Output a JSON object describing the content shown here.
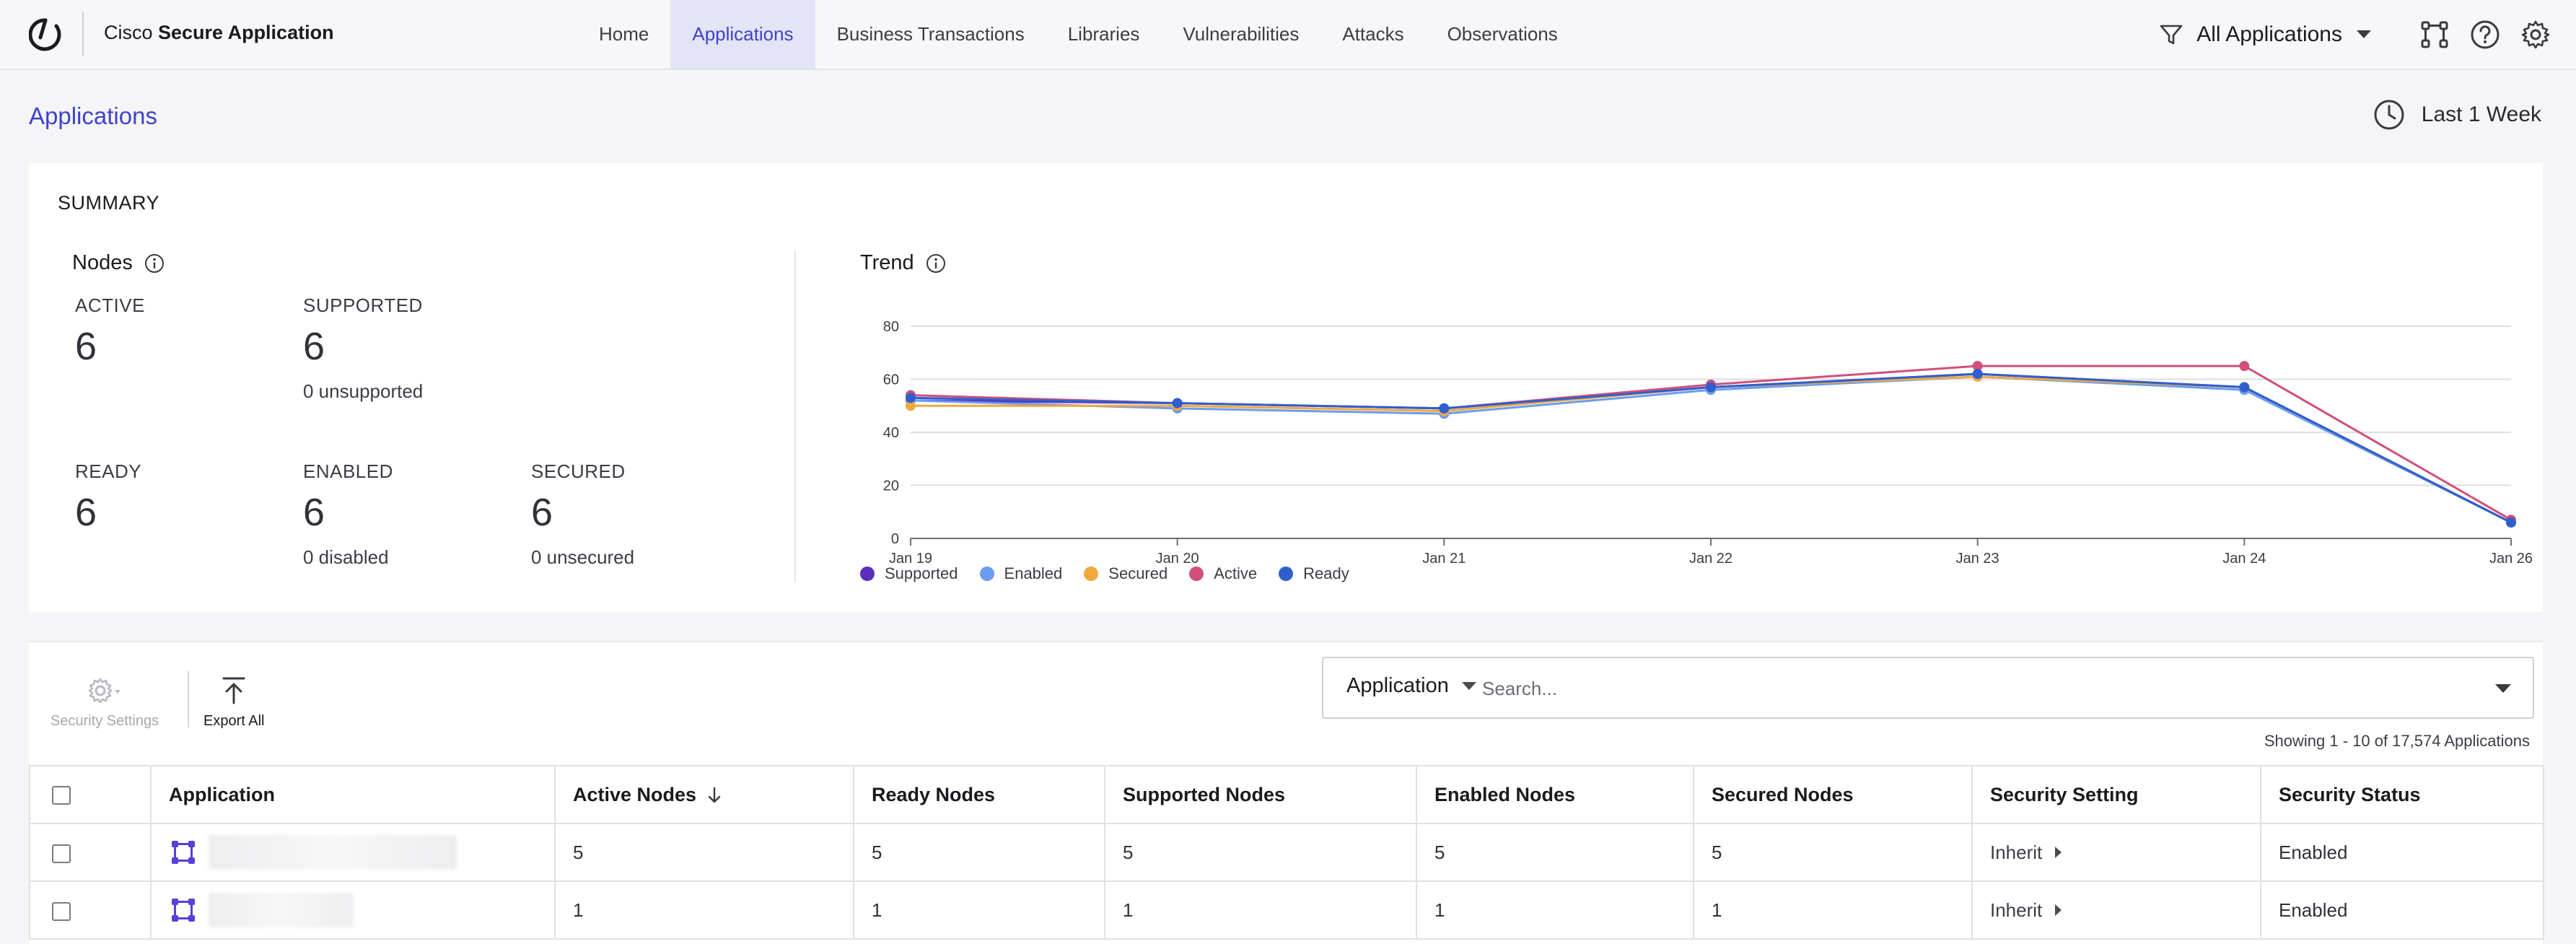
{
  "header": {
    "brand_prefix": "Cisco ",
    "brand_bold": "Secure Application",
    "nav": [
      {
        "label": "Home",
        "active": false
      },
      {
        "label": "Applications",
        "active": true
      },
      {
        "label": "Business Transactions",
        "active": false
      },
      {
        "label": "Libraries",
        "active": false
      },
      {
        "label": "Vulnerabilities",
        "active": false
      },
      {
        "label": "Attacks",
        "active": false
      },
      {
        "label": "Observations",
        "active": false
      }
    ],
    "app_filter": "All Applications",
    "icons": [
      "filter-icon",
      "topology-icon",
      "help-icon",
      "gear-icon"
    ]
  },
  "page": {
    "title": "Applications",
    "time_range": "Last 1 Week"
  },
  "summary": {
    "title": "SUMMARY",
    "nodes_label": "Nodes",
    "trend_label": "Trend",
    "metrics": {
      "active": {
        "label": "ACTIVE",
        "value": "6"
      },
      "supported": {
        "label": "SUPPORTED",
        "value": "6",
        "sub": "0 unsupported"
      },
      "ready": {
        "label": "READY",
        "value": "6"
      },
      "enabled": {
        "label": "ENABLED",
        "value": "6",
        "sub": "0 disabled"
      },
      "secured": {
        "label": "SECURED",
        "value": "6",
        "sub": "0 unsecured"
      }
    }
  },
  "chart_data": {
    "type": "line",
    "title": "Trend",
    "x": [
      "Jan 19",
      "Jan 20",
      "Jan 21",
      "Jan 22",
      "Jan 23",
      "Jan 24",
      "Jan 26"
    ],
    "ylim": [
      0,
      80
    ],
    "yticks": [
      0,
      20,
      40,
      60,
      80
    ],
    "grid": true,
    "legend_position": "bottom-left",
    "series": [
      {
        "name": "Supported",
        "color": "#5b2fb8",
        "values": [
          52,
          51,
          49,
          57,
          62,
          57,
          6
        ]
      },
      {
        "name": "Enabled",
        "color": "#6b9cf0",
        "values": [
          52,
          49,
          47,
          56,
          61,
          56,
          6
        ]
      },
      {
        "name": "Secured",
        "color": "#f0a93d",
        "values": [
          50,
          50,
          48,
          57,
          61,
          57,
          6
        ]
      },
      {
        "name": "Active",
        "color": "#d1507a",
        "values": [
          54,
          51,
          49,
          58,
          65,
          65,
          7
        ]
      },
      {
        "name": "Ready",
        "color": "#2f5fcf",
        "values": [
          53,
          51,
          49,
          57,
          62,
          57,
          6
        ]
      }
    ]
  },
  "toolbar": {
    "security_settings": "Security Settings",
    "export_all": "Export All"
  },
  "search": {
    "field": "Application",
    "placeholder": "Search...",
    "showing": "Showing 1 - 10 of 17,574 Applications"
  },
  "table": {
    "columns": [
      "Application",
      "Active Nodes",
      "Ready Nodes",
      "Supported Nodes",
      "Enabled Nodes",
      "Secured Nodes",
      "Security Setting",
      "Security Status"
    ],
    "rows": [
      {
        "active": "5",
        "ready": "5",
        "supported": "5",
        "enabled": "5",
        "secured": "5",
        "setting": "Inherit",
        "status": "Enabled"
      },
      {
        "active": "1",
        "ready": "1",
        "supported": "1",
        "enabled": "1",
        "secured": "1",
        "setting": "Inherit",
        "status": "Enabled"
      }
    ]
  }
}
